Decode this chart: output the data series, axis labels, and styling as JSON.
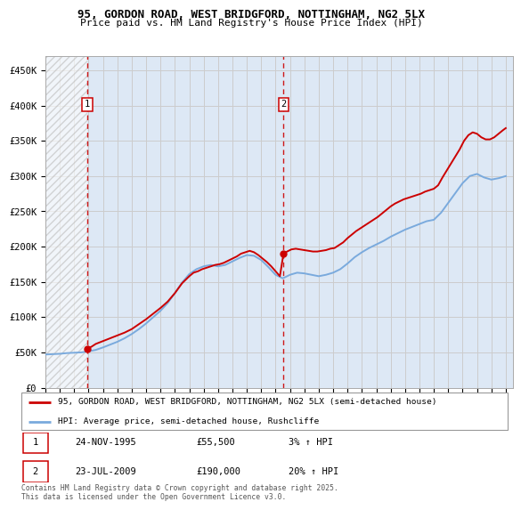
{
  "title": "95, GORDON ROAD, WEST BRIDGFORD, NOTTINGHAM, NG2 5LX",
  "subtitle": "Price paid vs. HM Land Registry's House Price Index (HPI)",
  "ylabel_ticks": [
    "£0",
    "£50K",
    "£100K",
    "£150K",
    "£200K",
    "£250K",
    "£300K",
    "£350K",
    "£400K",
    "£450K"
  ],
  "ylabel_values": [
    0,
    50000,
    100000,
    150000,
    200000,
    250000,
    300000,
    350000,
    400000,
    450000
  ],
  "ylim": [
    0,
    470000
  ],
  "xlim_start": 1993.0,
  "xlim_end": 2025.5,
  "hatch_end_year": 1995.9,
  "transaction1": {
    "year": 1995.9,
    "price": 55500,
    "label": "1",
    "date": "24-NOV-1995",
    "hpi_pct": "3%"
  },
  "transaction2": {
    "year": 2009.55,
    "price": 190000,
    "label": "2",
    "date": "23-JUL-2009",
    "hpi_pct": "20%"
  },
  "red_line_color": "#cc0000",
  "blue_line_color": "#7aaadd",
  "grid_color": "#cccccc",
  "bg_color": "#dde8f5",
  "legend_label_red": "95, GORDON ROAD, WEST BRIDGFORD, NOTTINGHAM, NG2 5LX (semi-detached house)",
  "legend_label_blue": "HPI: Average price, semi-detached house, Rushcliffe",
  "footer": "Contains HM Land Registry data © Crown copyright and database right 2025.\nThis data is licensed under the Open Government Licence v3.0.",
  "red_prices": [
    [
      1995.9,
      55500
    ],
    [
      1996.2,
      58000
    ],
    [
      1996.5,
      62000
    ],
    [
      1997.0,
      66000
    ],
    [
      1997.5,
      70000
    ],
    [
      1998.0,
      74000
    ],
    [
      1998.5,
      78000
    ],
    [
      1999.0,
      83000
    ],
    [
      1999.5,
      90000
    ],
    [
      2000.0,
      97000
    ],
    [
      2000.5,
      105000
    ],
    [
      2001.0,
      113000
    ],
    [
      2001.5,
      122000
    ],
    [
      2002.0,
      134000
    ],
    [
      2002.5,
      148000
    ],
    [
      2003.0,
      158000
    ],
    [
      2003.3,
      163000
    ],
    [
      2003.6,
      165000
    ],
    [
      2003.9,
      168000
    ],
    [
      2004.2,
      170000
    ],
    [
      2004.5,
      172000
    ],
    [
      2004.8,
      174000
    ],
    [
      2005.1,
      175000
    ],
    [
      2005.4,
      177000
    ],
    [
      2005.7,
      180000
    ],
    [
      2006.0,
      183000
    ],
    [
      2006.3,
      186000
    ],
    [
      2006.6,
      190000
    ],
    [
      2006.9,
      192000
    ],
    [
      2007.2,
      194000
    ],
    [
      2007.5,
      192000
    ],
    [
      2007.8,
      188000
    ],
    [
      2008.1,
      183000
    ],
    [
      2008.4,
      178000
    ],
    [
      2008.7,
      172000
    ],
    [
      2009.0,
      165000
    ],
    [
      2009.3,
      158000
    ],
    [
      2009.55,
      190000
    ],
    [
      2009.8,
      193000
    ],
    [
      2010.1,
      196000
    ],
    [
      2010.4,
      197000
    ],
    [
      2010.7,
      196000
    ],
    [
      2011.0,
      195000
    ],
    [
      2011.3,
      194000
    ],
    [
      2011.6,
      193000
    ],
    [
      2011.9,
      193000
    ],
    [
      2012.2,
      194000
    ],
    [
      2012.5,
      195000
    ],
    [
      2012.8,
      197000
    ],
    [
      2013.1,
      198000
    ],
    [
      2013.4,
      202000
    ],
    [
      2013.7,
      206000
    ],
    [
      2014.0,
      212000
    ],
    [
      2014.3,
      217000
    ],
    [
      2014.6,
      222000
    ],
    [
      2014.9,
      226000
    ],
    [
      2015.2,
      230000
    ],
    [
      2015.5,
      234000
    ],
    [
      2015.8,
      238000
    ],
    [
      2016.1,
      242000
    ],
    [
      2016.4,
      247000
    ],
    [
      2016.7,
      252000
    ],
    [
      2017.0,
      257000
    ],
    [
      2017.3,
      261000
    ],
    [
      2017.6,
      264000
    ],
    [
      2017.9,
      267000
    ],
    [
      2018.2,
      269000
    ],
    [
      2018.5,
      271000
    ],
    [
      2018.8,
      273000
    ],
    [
      2019.1,
      275000
    ],
    [
      2019.4,
      278000
    ],
    [
      2019.7,
      280000
    ],
    [
      2020.0,
      282000
    ],
    [
      2020.3,
      287000
    ],
    [
      2020.6,
      298000
    ],
    [
      2020.9,
      308000
    ],
    [
      2021.2,
      318000
    ],
    [
      2021.5,
      328000
    ],
    [
      2021.8,
      338000
    ],
    [
      2022.1,
      350000
    ],
    [
      2022.4,
      358000
    ],
    [
      2022.7,
      362000
    ],
    [
      2023.0,
      360000
    ],
    [
      2023.3,
      355000
    ],
    [
      2023.6,
      352000
    ],
    [
      2023.9,
      352000
    ],
    [
      2024.2,
      355000
    ],
    [
      2024.5,
      360000
    ],
    [
      2024.8,
      365000
    ],
    [
      2025.0,
      368000
    ]
  ],
  "blue_prices": [
    [
      1993.0,
      47000
    ],
    [
      1993.5,
      47500
    ],
    [
      1994.0,
      48000
    ],
    [
      1994.5,
      49000
    ],
    [
      1995.0,
      49500
    ],
    [
      1995.5,
      50000
    ],
    [
      1996.0,
      51500
    ],
    [
      1996.5,
      53500
    ],
    [
      1997.0,
      57000
    ],
    [
      1997.5,
      61000
    ],
    [
      1998.0,
      65000
    ],
    [
      1998.5,
      70000
    ],
    [
      1999.0,
      76000
    ],
    [
      1999.5,
      83000
    ],
    [
      2000.0,
      91000
    ],
    [
      2000.5,
      100000
    ],
    [
      2001.0,
      109000
    ],
    [
      2001.5,
      120000
    ],
    [
      2002.0,
      134000
    ],
    [
      2002.5,
      149000
    ],
    [
      2003.0,
      161000
    ],
    [
      2003.5,
      168000
    ],
    [
      2004.0,
      172000
    ],
    [
      2004.5,
      174000
    ],
    [
      2005.0,
      172000
    ],
    [
      2005.5,
      174000
    ],
    [
      2006.0,
      179000
    ],
    [
      2006.5,
      184000
    ],
    [
      2007.0,
      188000
    ],
    [
      2007.5,
      187000
    ],
    [
      2008.0,
      181000
    ],
    [
      2008.5,
      171000
    ],
    [
      2009.0,
      160000
    ],
    [
      2009.5,
      155000
    ],
    [
      2010.0,
      160000
    ],
    [
      2010.5,
      163000
    ],
    [
      2011.0,
      162000
    ],
    [
      2011.5,
      160000
    ],
    [
      2012.0,
      158000
    ],
    [
      2012.5,
      160000
    ],
    [
      2013.0,
      163000
    ],
    [
      2013.5,
      168000
    ],
    [
      2014.0,
      176000
    ],
    [
      2014.5,
      185000
    ],
    [
      2015.0,
      192000
    ],
    [
      2015.5,
      198000
    ],
    [
      2016.0,
      203000
    ],
    [
      2016.5,
      208000
    ],
    [
      2017.0,
      214000
    ],
    [
      2017.5,
      219000
    ],
    [
      2018.0,
      224000
    ],
    [
      2018.5,
      228000
    ],
    [
      2019.0,
      232000
    ],
    [
      2019.5,
      236000
    ],
    [
      2020.0,
      238000
    ],
    [
      2020.5,
      248000
    ],
    [
      2021.0,
      262000
    ],
    [
      2021.5,
      276000
    ],
    [
      2022.0,
      290000
    ],
    [
      2022.5,
      300000
    ],
    [
      2023.0,
      303000
    ],
    [
      2023.5,
      298000
    ],
    [
      2024.0,
      295000
    ],
    [
      2024.5,
      297000
    ],
    [
      2025.0,
      300000
    ]
  ]
}
